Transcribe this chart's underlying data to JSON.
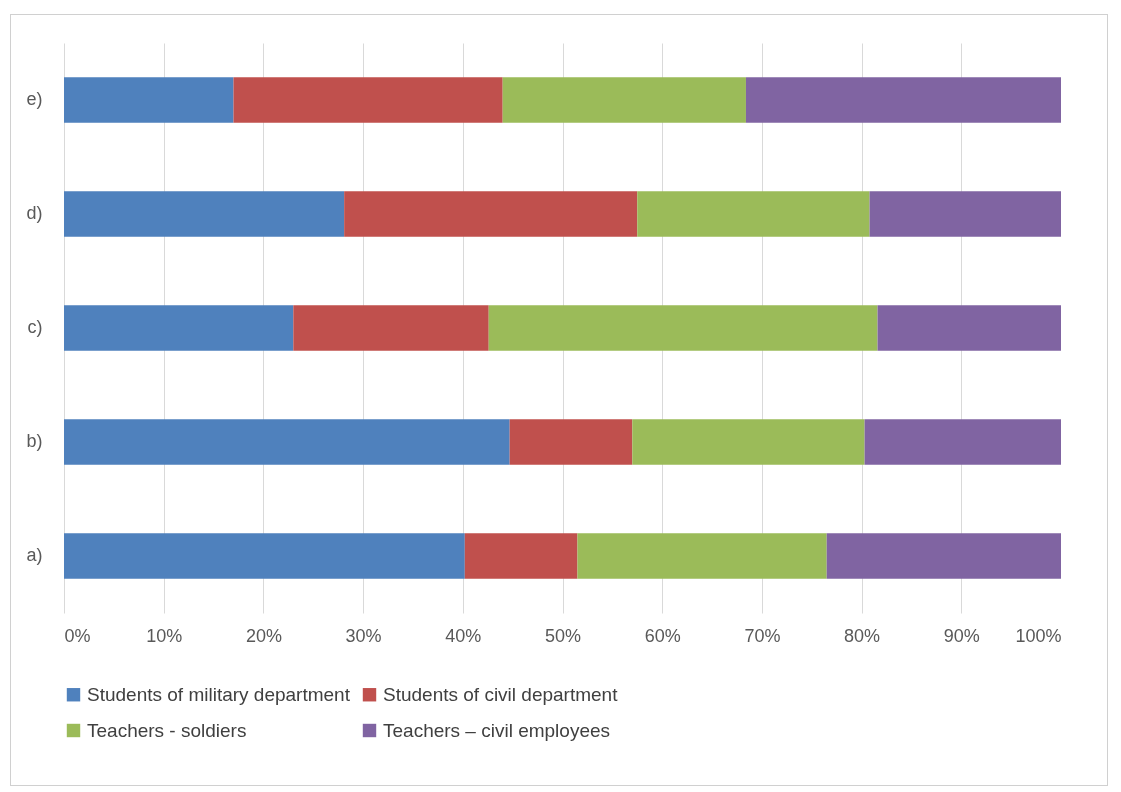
{
  "chart_data": {
    "type": "bar",
    "orientation": "horizontal",
    "stacked": true,
    "categories": [
      "e)",
      "d)",
      "c)",
      "b)",
      "a)"
    ],
    "series": [
      {
        "name": "Students of military department",
        "color": "#4f81bd",
        "values": [
          17.0,
          28.1,
          23.0,
          44.7,
          40.2
        ]
      },
      {
        "name": "Students of civil department",
        "color": "#c0504d",
        "values": [
          27.0,
          29.4,
          19.6,
          12.3,
          11.3
        ]
      },
      {
        "name": "Teachers - soldiers",
        "color": "#9bbb59",
        "values": [
          24.4,
          23.3,
          39.0,
          23.3,
          25.0
        ]
      },
      {
        "name": "Teachers – civil employees",
        "color": "#8064a2",
        "values": [
          31.6,
          19.2,
          18.4,
          19.7,
          23.5
        ]
      }
    ],
    "xlim": [
      0,
      100
    ],
    "xticks": [
      {
        "value": 0,
        "label": "0%"
      },
      {
        "value": 10,
        "label": "10%"
      },
      {
        "value": 20,
        "label": "20%"
      },
      {
        "value": 30,
        "label": "30%"
      },
      {
        "value": 40,
        "label": "40%"
      },
      {
        "value": 50,
        "label": "50%"
      },
      {
        "value": 60,
        "label": "60%"
      },
      {
        "value": 70,
        "label": "70%"
      },
      {
        "value": 80,
        "label": "80%"
      },
      {
        "value": 90,
        "label": "90%"
      },
      {
        "value": 100,
        "label": "100%"
      }
    ],
    "grid": "x",
    "legend": "bottom"
  }
}
